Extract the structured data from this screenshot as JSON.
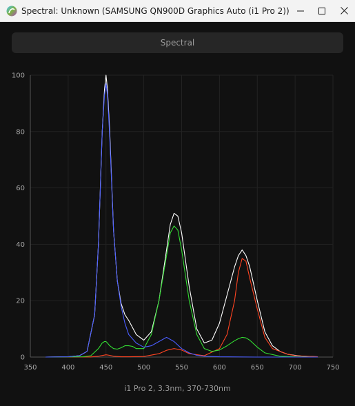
{
  "window": {
    "title": "Spectral: Unknown (SAMSUNG QN900D Graphics Auto (i1 Pro 2))",
    "app_icon": "spectral-app-icon",
    "controls": [
      "minimize-icon",
      "maximize-icon",
      "close-icon"
    ]
  },
  "tab": {
    "label": "Spectral"
  },
  "caption": "i1 Pro 2, 3.3nm, 370-730nm",
  "chart_data": {
    "type": "line",
    "xlim": [
      350,
      750
    ],
    "ylim": [
      0,
      100
    ],
    "x_ticks": [
      350,
      400,
      450,
      500,
      550,
      600,
      650,
      700,
      750
    ],
    "y_ticks": [
      0,
      20,
      40,
      60,
      80,
      100
    ],
    "grid": true,
    "xlabel": "",
    "ylabel": "",
    "series": [
      {
        "color": "#ffffff",
        "x": [
          370,
          400,
          415,
          425,
          435,
          440,
          445,
          448,
          450,
          452,
          455,
          460,
          465,
          470,
          475,
          480,
          490,
          500,
          510,
          520,
          530,
          535,
          540,
          545,
          550,
          560,
          570,
          580,
          590,
          600,
          610,
          620,
          625,
          630,
          635,
          640,
          650,
          660,
          670,
          680,
          690,
          700,
          710,
          720,
          730
        ],
        "y": [
          0,
          0.1,
          0.5,
          2,
          15,
          40,
          80,
          95,
          100,
          95,
          80,
          45,
          27,
          19,
          15,
          13,
          8,
          6,
          9,
          20,
          38,
          47,
          51,
          50,
          44,
          25,
          10,
          5,
          6,
          12,
          22,
          32,
          36,
          38,
          36,
          32,
          20,
          9,
          4,
          2,
          1,
          0.6,
          0.3,
          0.2,
          0.1
        ]
      },
      {
        "color": "#4a5dff",
        "x": [
          370,
          400,
          415,
          425,
          435,
          440,
          445,
          448,
          450,
          452,
          455,
          460,
          465,
          470,
          475,
          480,
          490,
          500,
          510,
          520,
          530,
          540,
          550,
          560,
          570,
          580,
          600,
          650,
          700,
          730
        ],
        "y": [
          0,
          0.1,
          0.5,
          2,
          15,
          40,
          80,
          93,
          97,
          93,
          78,
          45,
          27,
          18,
          12,
          8,
          5,
          3.5,
          4,
          5.5,
          7,
          5.5,
          3,
          1.5,
          0.6,
          0.3,
          0.1,
          0,
          0,
          0
        ]
      },
      {
        "color": "#33dd33",
        "x": [
          370,
          420,
          430,
          440,
          445,
          448,
          450,
          452,
          455,
          460,
          465,
          470,
          475,
          480,
          485,
          490,
          500,
          510,
          520,
          530,
          535,
          540,
          545,
          550,
          560,
          570,
          580,
          590,
          600,
          610,
          620,
          625,
          630,
          635,
          640,
          650,
          660,
          680,
          700,
          730
        ],
        "y": [
          0,
          0.1,
          0.5,
          3,
          5,
          5.5,
          5.5,
          5,
          4,
          3,
          2.8,
          3.3,
          4,
          4,
          3.8,
          3,
          3,
          8,
          20,
          36,
          44,
          46.5,
          45,
          38,
          20,
          8,
          3,
          2,
          2.5,
          4,
          5.8,
          6.5,
          7,
          6.8,
          6,
          3.5,
          1.5,
          0.3,
          0.1,
          0
        ]
      },
      {
        "color": "#ff4422",
        "x": [
          370,
          430,
          440,
          450,
          455,
          460,
          470,
          480,
          500,
          520,
          530,
          540,
          550,
          560,
          580,
          600,
          610,
          620,
          625,
          630,
          635,
          640,
          650,
          660,
          670,
          690,
          700,
          730
        ],
        "y": [
          0,
          0.05,
          0.3,
          0.8,
          0.6,
          0.3,
          0.1,
          0.1,
          0.2,
          1.2,
          2.4,
          3,
          2.5,
          1.2,
          0.5,
          3,
          8,
          20,
          30,
          35,
          34,
          28,
          17,
          7,
          3,
          1,
          0.5,
          0.1
        ]
      }
    ]
  }
}
